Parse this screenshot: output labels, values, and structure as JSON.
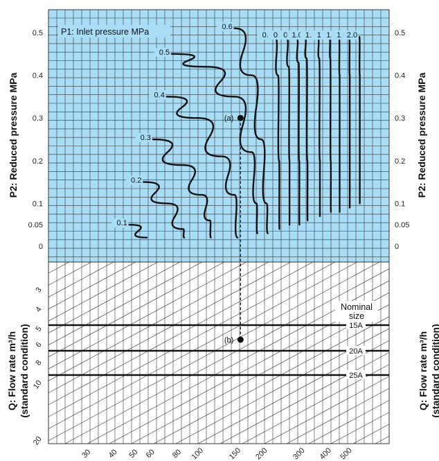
{
  "chart_data": {
    "type": "line",
    "title": "P1: Inlet pressure MPa",
    "upper_panel": {
      "ylabel": "P2: Reduced pressure MPa",
      "y_ticks": [
        "0.5",
        "0.4",
        "0.3",
        "0.2",
        "0.1",
        "0.05",
        "0"
      ],
      "ylim": [
        0,
        0.5
      ],
      "grid": true,
      "background": "#a9dcf5",
      "series": [
        {
          "name": "0.1",
          "points": [
            [
              48,
              0.05
            ],
            [
              58,
              0.02
            ]
          ]
        },
        {
          "name": "0.2",
          "points": [
            [
              56,
              0.15
            ],
            [
              72,
              0.1
            ],
            [
              86,
              0.04
            ],
            [
              87,
              0.02
            ]
          ]
        },
        {
          "name": "0.3",
          "points": [
            [
              62,
              0.25
            ],
            [
              85,
              0.19
            ],
            [
              105,
              0.12
            ],
            [
              115,
              0.06
            ],
            [
              116,
              0.02
            ]
          ]
        },
        {
          "name": "0.4",
          "points": [
            [
              72,
              0.35
            ],
            [
              100,
              0.3
            ],
            [
              130,
              0.21
            ],
            [
              150,
              0.12
            ],
            [
              155,
              0.02
            ]
          ]
        },
        {
          "name": "0.5",
          "points": [
            [
              76,
              0.45
            ],
            [
              110,
              0.42
            ],
            [
              150,
              0.35
            ],
            [
              180,
              0.22
            ],
            [
              190,
              0.1
            ],
            [
              192,
              0.03
            ]
          ]
        },
        {
          "name": "0.6",
          "points": [
            [
              150,
              0.51
            ],
            [
              180,
              0.4
            ],
            [
              200,
              0.25
            ],
            [
              212,
              0.1
            ],
            [
              215,
              0.03
            ]
          ]
        },
        {
          "name": "0.7",
          "points": [
            [
              232,
              0.49
            ],
            [
              240,
              0.4
            ],
            [
              243,
              0.2
            ],
            [
              244,
              0.04
            ]
          ]
        },
        {
          "name": "0.8",
          "points": [
            [
              262,
              0.49
            ],
            [
              270,
              0.42
            ],
            [
              272,
              0.2
            ],
            [
              272,
              0.05
            ]
          ]
        },
        {
          "name": "0.9",
          "points": [
            [
              292,
              0.49
            ],
            [
              300,
              0.43
            ],
            [
              302,
              0.2
            ],
            [
              303,
              0.05
            ]
          ]
        },
        {
          "name": "1.0",
          "points": [
            [
              320,
              0.49
            ],
            [
              327,
              0.44
            ],
            [
              330,
              0.2
            ],
            [
              331,
              0.06
            ]
          ]
        },
        {
          "name": "1.2",
          "points": [
            [
              370,
              0.49
            ],
            [
              375,
              0.44
            ],
            [
              378,
              0.2
            ],
            [
              378,
              0.07
            ]
          ]
        },
        {
          "name": "1.3",
          "points": [
            [
              420,
              0.49
            ],
            [
              423,
              0.44
            ],
            [
              425,
              0.2
            ],
            [
              426,
              0.08
            ]
          ]
        },
        {
          "name": "1.5",
          "points": [
            [
              465,
              0.49
            ],
            [
              468,
              0.4
            ],
            [
              468,
              0.08
            ]
          ]
        },
        {
          "name": "1.7",
          "points": [
            [
              520,
              0.49
            ],
            [
              522,
              0.4
            ],
            [
              522,
              0.09
            ]
          ]
        },
        {
          "name": "2.0",
          "points": [
            [
              580,
              0.49
            ],
            [
              582,
              0.4
            ],
            [
              582,
              0.1
            ]
          ]
        }
      ]
    },
    "lower_panel": {
      "ylabel_line1": "Q: Flow rate m³/h",
      "ylabel_line2": "(standard condition)",
      "y_ticks": [
        "3",
        "4",
        "5",
        "6",
        "8",
        "10",
        "20"
      ],
      "x_ticks": [
        "30",
        "40",
        "50",
        "60",
        "80",
        "100",
        "150",
        "200",
        "300",
        "400",
        "500"
      ],
      "grid": true,
      "background": "#ffffff",
      "nominal_size_title_line1": "Nominal",
      "nominal_size_title_line2": "size",
      "nominal_sizes": [
        "15A",
        "20A",
        "25A"
      ]
    },
    "example": {
      "point_a_label": "(a)",
      "point_a_p2": 0.3,
      "point_b_label": "(b)",
      "flow_value": 160
    }
  }
}
